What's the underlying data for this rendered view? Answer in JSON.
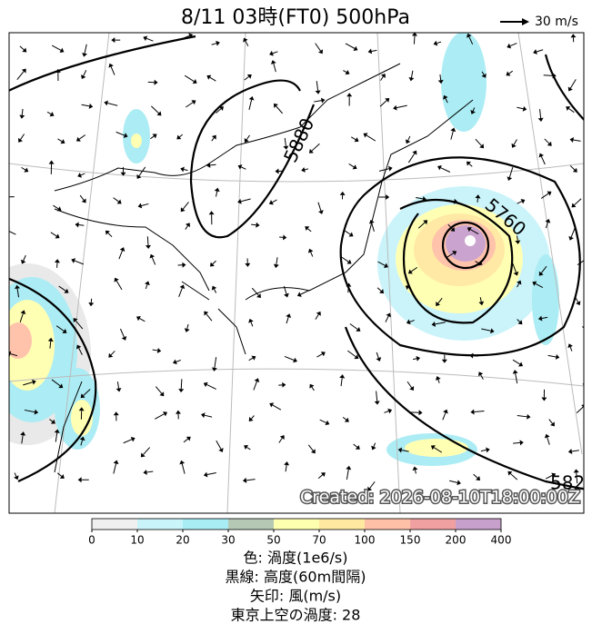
{
  "header": {
    "title": "8/11  03時(FT0)    500hPa",
    "scale_label": "30 m/s"
  },
  "map": {
    "contour_labels": [
      "5880",
      "5760",
      "582"
    ],
    "watermark": "Created: 2026-08-10T18:00:00Z"
  },
  "colorbar": {
    "ticks": [
      0,
      10,
      20,
      30,
      50,
      70,
      100,
      150,
      200,
      400
    ],
    "colors": [
      "#f0f0f0",
      "#c8f4fa",
      "#a8ecf4",
      "#b4c8b4",
      "#ffffb0",
      "#ffe8a0",
      "#ffc0a8",
      "#f0a0a0",
      "#c8a0cc"
    ]
  },
  "legend": {
    "lines": [
      "色: 渦度(1e6/s)",
      "黒線: 高度(60m間隔)",
      "矢印: 風(m/s)",
      "東京上空の渦度: 28"
    ]
  }
}
